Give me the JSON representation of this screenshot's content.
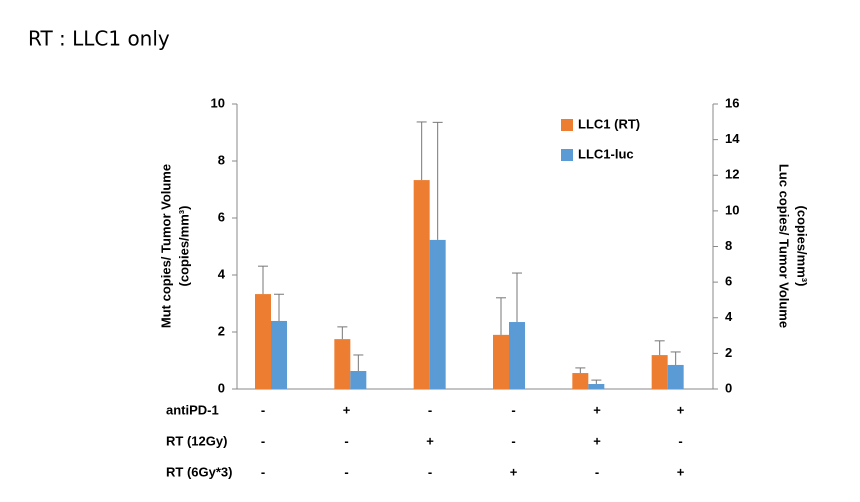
{
  "header": "RT : LLC1 only",
  "chart_data": {
    "type": "bar",
    "ylabel": [
      "Mut copies/ Tumor Volume",
      "(copies/mm³)"
    ],
    "y2label": [
      "Luc copies/ Tumor Volume",
      "(copies/mm³)"
    ],
    "ylim": [
      0,
      10
    ],
    "yticks": [
      0,
      2,
      4,
      6,
      8,
      10
    ],
    "y2lim": [
      0,
      16
    ],
    "y2ticks": [
      0,
      2,
      4,
      6,
      8,
      10,
      12,
      14,
      16
    ],
    "legend": "top-right",
    "series": [
      {
        "name": "LLC1 (RT)",
        "color": "#ed7d31",
        "axis": "y",
        "values": [
          3.33,
          1.75,
          7.33,
          1.9,
          0.56,
          1.19
        ],
        "errors": [
          0.98,
          0.43,
          2.04,
          1.3,
          0.18,
          0.5
        ]
      },
      {
        "name": "LLC1-luc",
        "color": "#5b9bd5",
        "axis": "y2",
        "values": [
          3.82,
          1.01,
          8.37,
          3.76,
          0.28,
          1.35
        ],
        "errors": [
          1.5,
          0.9,
          6.6,
          2.75,
          0.22,
          0.73
        ]
      }
    ],
    "treatments": [
      {
        "name": "antiPD-1",
        "values": [
          "-",
          "+",
          "-",
          "-",
          "+",
          "+"
        ]
      },
      {
        "name": "RT (12Gy)",
        "values": [
          "-",
          "-",
          "+",
          "-",
          "+",
          "-"
        ]
      },
      {
        "name": "RT (6Gy*3)",
        "values": [
          "-",
          "-",
          "-",
          "+",
          "-",
          "+"
        ]
      }
    ]
  }
}
